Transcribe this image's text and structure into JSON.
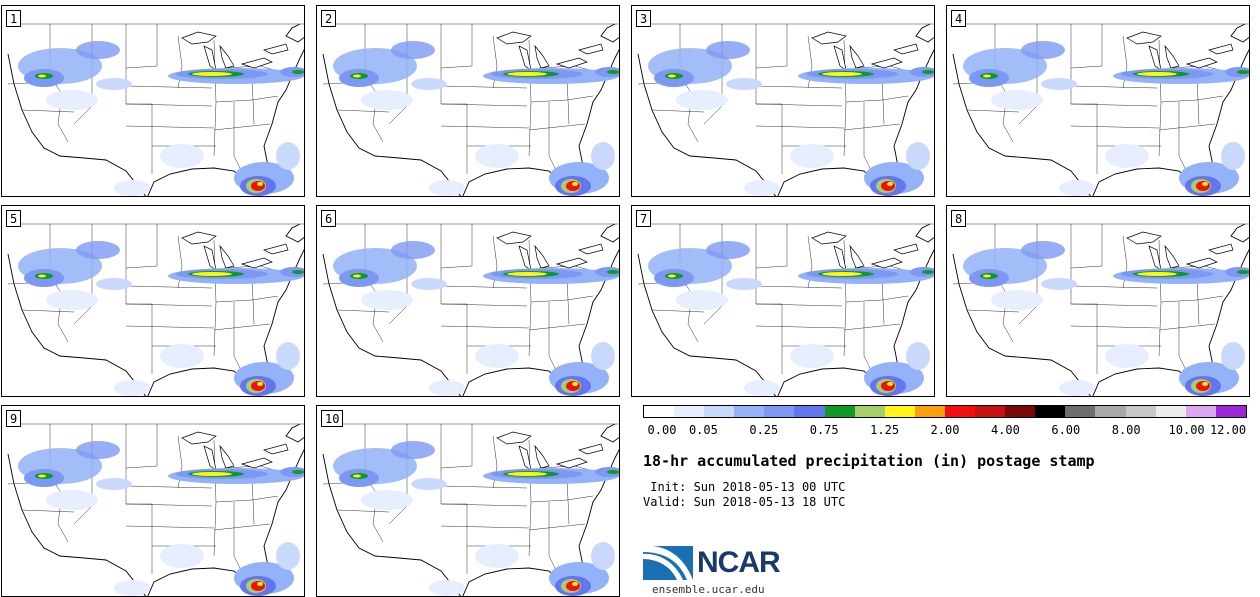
{
  "panels": [
    {
      "label": "1"
    },
    {
      "label": "2"
    },
    {
      "label": "3"
    },
    {
      "label": "4"
    },
    {
      "label": "5"
    },
    {
      "label": "6"
    },
    {
      "label": "7"
    },
    {
      "label": "8"
    },
    {
      "label": "9"
    },
    {
      "label": "10"
    }
  ],
  "colorbar": {
    "colors": [
      "#ffffff",
      "#e6eeff",
      "#c9d9fb",
      "#93b2f7",
      "#7d98f3",
      "#6376ee",
      "#0d9b25",
      "#a7cf6b",
      "#fff516",
      "#fb9f0f",
      "#f40f0f",
      "#c81010",
      "#7a0808",
      "#000000",
      "#6e6e6e",
      "#a8a8a8",
      "#c8c8c8",
      "#ececec",
      "#dca7f0",
      "#9d26d9"
    ],
    "ticks": [
      "0.00",
      "0.05",
      "0.25",
      "0.75",
      "1.25",
      "2.00",
      "4.00",
      "6.00",
      "8.00",
      "10.00",
      "12.00"
    ]
  },
  "title": "18-hr accumulated precipitation (in) postage stamp",
  "init": " Init: Sun 2018-05-13 00 UTC",
  "valid": "Valid: Sun 2018-05-13 18 UTC",
  "logo": {
    "text": "NCAR",
    "url": "ensemble.ucar.edu",
    "brand_blue": "#1a3a6b",
    "brand_light": "#4aa3df"
  }
}
